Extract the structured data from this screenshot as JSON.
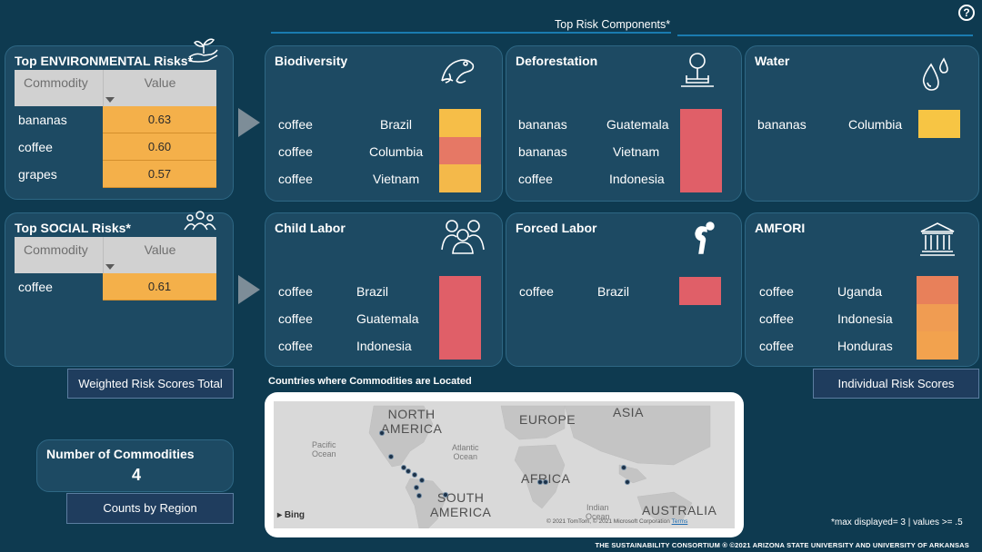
{
  "header": {
    "title": "Top Risk Components*",
    "help_label": "?"
  },
  "env_panel": {
    "title": "Top ENVIRONMENTAL Risks*",
    "col_commodity": "Commodity",
    "col_value": "Value",
    "rows": [
      {
        "commodity": "bananas",
        "value": "0.63"
      },
      {
        "commodity": "coffee",
        "value": "0.60"
      },
      {
        "commodity": "grapes",
        "value": "0.57"
      }
    ],
    "icon": "plant-hand-icon"
  },
  "social_panel": {
    "title": "Top SOCIAL Risks*",
    "col_commodity": "Commodity",
    "col_value": "Value",
    "rows": [
      {
        "commodity": "coffee",
        "value": "0.61"
      }
    ],
    "icon": "people-group-icon"
  },
  "risk_cards": {
    "biodiversity": {
      "title": "Biodiversity",
      "icon": "frog-icon",
      "rows": [
        {
          "commodity": "coffee",
          "country": "Brazil",
          "color": "#f6be48"
        },
        {
          "commodity": "coffee",
          "country": "Columbia",
          "color": "#e67865"
        },
        {
          "commodity": "coffee",
          "country": "Vietnam",
          "color": "#f4b94a"
        }
      ]
    },
    "deforestation": {
      "title": "Deforestation",
      "icon": "tree-icon",
      "rows": [
        {
          "commodity": "bananas",
          "country": "Guatemala",
          "color": "#e05f68"
        },
        {
          "commodity": "bananas",
          "country": "Vietnam",
          "color": "#e05f68"
        },
        {
          "commodity": "coffee",
          "country": "Indonesia",
          "color": "#e05f68"
        }
      ]
    },
    "water": {
      "title": "Water",
      "icon": "water-drops-icon",
      "rows": [
        {
          "commodity": "bananas",
          "country": "Columbia",
          "color": "#f7c544"
        }
      ]
    },
    "child_labor": {
      "title": "Child Labor",
      "icon": "children-icon",
      "rows": [
        {
          "commodity": "coffee",
          "country": "Brazil",
          "color": "#e05f68"
        },
        {
          "commodity": "coffee",
          "country": "Guatemala",
          "color": "#e05f68"
        },
        {
          "commodity": "coffee",
          "country": "Indonesia",
          "color": "#e05f68"
        }
      ]
    },
    "forced_labor": {
      "title": "Forced Labor",
      "icon": "bent-person-icon",
      "rows": [
        {
          "commodity": "coffee",
          "country": "Brazil",
          "color": "#e05f68"
        }
      ]
    },
    "amfori": {
      "title": "AMFORI",
      "icon": "institution-icon",
      "rows": [
        {
          "commodity": "coffee",
          "country": "Uganda",
          "color": "#e8805a"
        },
        {
          "commodity": "coffee",
          "country": "Indonesia",
          "color": "#f09c52"
        },
        {
          "commodity": "coffee",
          "country": "Honduras",
          "color": "#f2a24e"
        }
      ]
    }
  },
  "buttons": {
    "weighted": "Weighted Risk Scores Total",
    "individual": "Individual Risk Scores",
    "counts": "Counts by Region"
  },
  "commodities": {
    "label": "Number of Commodities",
    "count": "4"
  },
  "map": {
    "title": "Countries where Commodities are Located",
    "labels": {
      "north_america": "NORTH\nAMERICA",
      "europe": "EUROPE",
      "asia": "ASIA",
      "africa": "AFRICA",
      "south_america": "SOUTH\nAMERICA",
      "australia": "AUSTRALIA",
      "pacific": "Pacific\nOcean",
      "atlantic": "Atlantic\nOcean",
      "indian": "Indian\nOcean"
    },
    "brand": "Bing",
    "copyright": "© 2021 TomTom, © 2021 Microsoft Corporation",
    "terms": "Terms"
  },
  "footnote": "*max displayed= 3  |  values >= .5",
  "footer": "THE SUSTAINABILITY CONSORTIUM ® ©2021 ARIZONA STATE UNIVERSITY AND UNIVERSITY OF ARKANSAS",
  "colors": {
    "background": "#0e3a50",
    "card": "#1d4a63",
    "value_cell": "#f4b04a",
    "high_risk": "#e05f68",
    "header_line": "#1a7bb0"
  }
}
